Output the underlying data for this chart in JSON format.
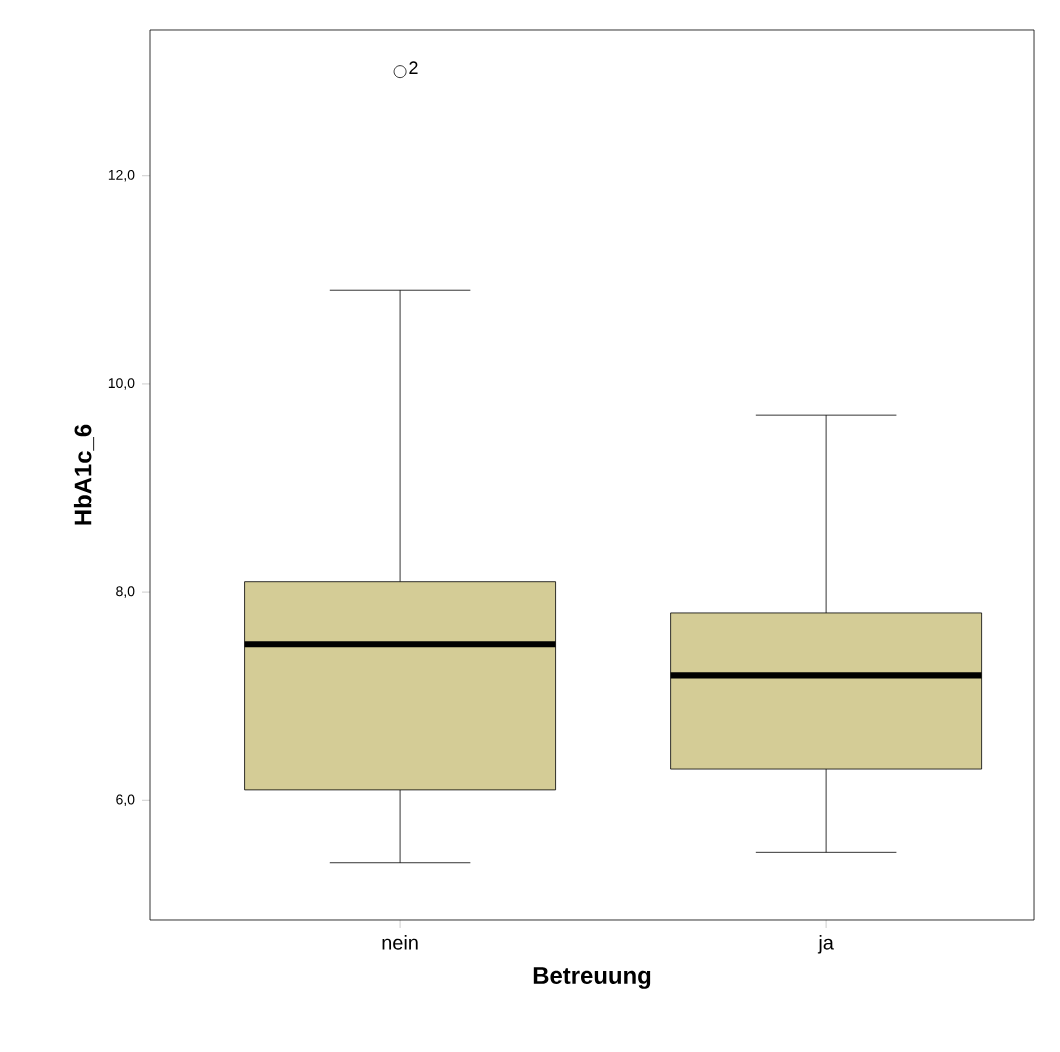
{
  "chart_data": {
    "type": "box",
    "xlabel": "Betreuung",
    "ylabel": "HbA1c_6",
    "categories": [
      "nein",
      "ja"
    ],
    "boxes": [
      {
        "low": 5.4,
        "q1": 6.1,
        "median": 7.5,
        "q3": 8.1,
        "high": 10.9,
        "outliers": [
          13.0
        ]
      },
      {
        "low": 5.5,
        "q1": 6.3,
        "median": 7.2,
        "q3": 7.8,
        "high": 9.7
      }
    ],
    "color": "#d4cc96",
    "ylim": [
      4.85,
      13.4
    ],
    "yticks": [
      {
        "value": 6,
        "label": "6,0"
      },
      {
        "value": 8,
        "label": "8,0"
      },
      {
        "value": 10,
        "label": "10,0"
      },
      {
        "value": 12,
        "label": "12,0"
      }
    ],
    "annotations": [
      "2"
    ]
  }
}
